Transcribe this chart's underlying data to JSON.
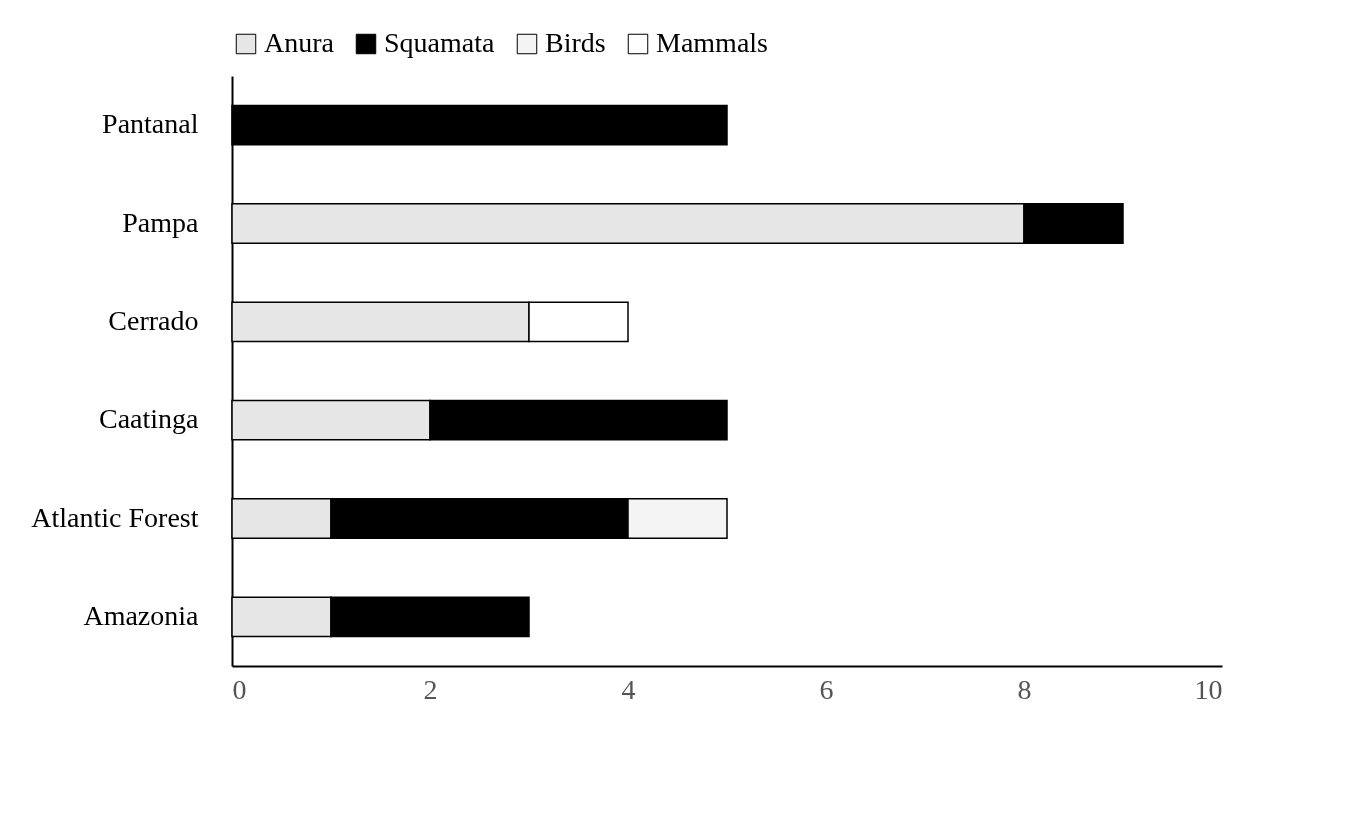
{
  "chart_data": {
    "type": "bar",
    "orientation": "horizontal",
    "stacked": true,
    "categories": [
      "Pantanal",
      "Pampa",
      "Cerrado",
      "Caatinga",
      "Atlantic Forest",
      "Amazonia"
    ],
    "series": [
      {
        "name": "Anura",
        "color": "#e6e6e6",
        "values": [
          null,
          8,
          3,
          2,
          1,
          1
        ]
      },
      {
        "name": "Squamata",
        "color": "#000000",
        "values": [
          5,
          1,
          null,
          3,
          3,
          2
        ]
      },
      {
        "name": "Birds",
        "color": "#f4f4f4",
        "values": [
          null,
          null,
          null,
          null,
          1,
          null
        ]
      },
      {
        "name": "Mammals",
        "color": "#ffffff",
        "values": [
          null,
          null,
          1,
          null,
          null,
          null
        ]
      }
    ],
    "xlim": [
      0,
      10
    ],
    "xticks": [
      0,
      2,
      4,
      6,
      8,
      10
    ],
    "grid": false,
    "legend": "top"
  }
}
